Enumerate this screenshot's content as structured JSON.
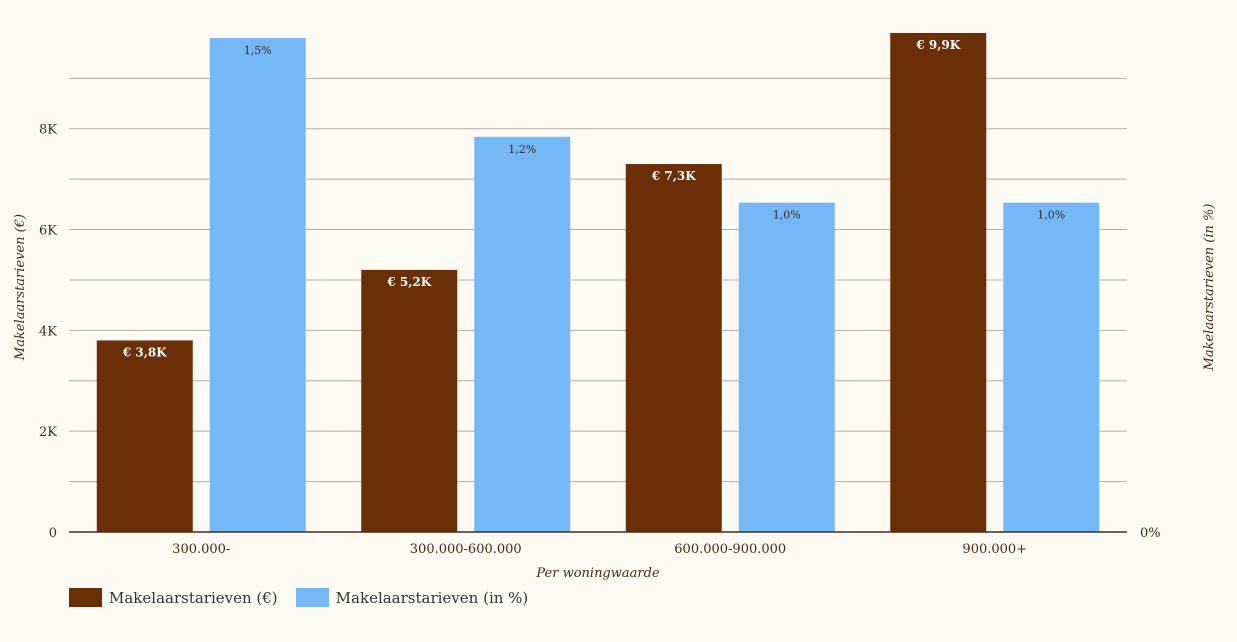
{
  "colors": {
    "series_eur": "#6b2f07",
    "series_pct": "#76b8f6",
    "grid": "#b8aaa4",
    "axis_text": "#4a2a14",
    "background": "#fefbf5"
  },
  "chart_data": {
    "type": "bar",
    "title": "",
    "xlabel": "Per woningwaarde",
    "ylabel_left": "Makelaarstarieven (€)",
    "ylabel_right": "Makelaarstarieven (in %)",
    "categories": [
      "300.000-",
      "300.000-600.000",
      "600.000-900.000",
      "900.000+"
    ],
    "ylim_left": [
      0,
      9800
    ],
    "ylim_right": [
      0,
      1.5
    ],
    "left_ticks": [
      {
        "value": 0,
        "label": "0"
      },
      {
        "value": 2000,
        "label": "2K"
      },
      {
        "value": 4000,
        "label": "4K"
      },
      {
        "value": 6000,
        "label": "6K"
      },
      {
        "value": 8000,
        "label": "8K"
      }
    ],
    "gridlines": [
      1000,
      2000,
      3000,
      4000,
      5000,
      6000,
      7000,
      8000,
      9000
    ],
    "right_ticks": [
      {
        "value": 0,
        "label": "0%"
      }
    ],
    "series": [
      {
        "name": "Makelaarstarieven (€)",
        "axis": "left",
        "values": [
          3800,
          5200,
          7300,
          9900
        ],
        "labels": [
          "€ 3,8K",
          "€ 5,2K",
          "€ 7,3K",
          "€ 9,9K"
        ]
      },
      {
        "name": "Makelaarstarieven (in %)",
        "axis": "right",
        "values": [
          1.5,
          1.2,
          1.0,
          1.0
        ],
        "labels": [
          "1,5%",
          "1,2%",
          "1,0%",
          "1,0%"
        ]
      }
    ],
    "legend_position": "bottom-left",
    "grid": true
  }
}
